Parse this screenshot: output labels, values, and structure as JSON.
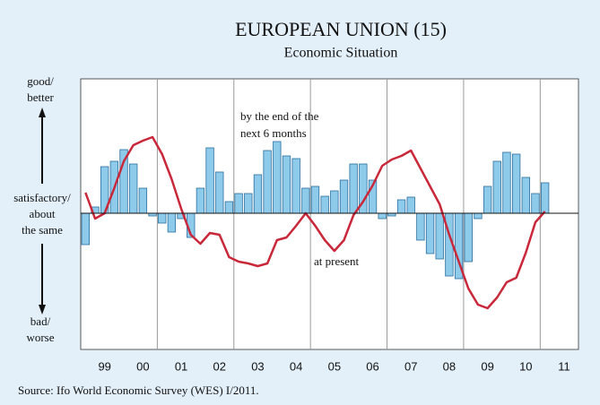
{
  "chart_data": {
    "type": "bar-line",
    "title": "EUROPEAN UNION (15)",
    "subtitle": "Economic Situation",
    "y_labels": {
      "top": [
        "good/",
        "better"
      ],
      "middle": [
        "satisfactory/",
        "about",
        "the same"
      ],
      "bottom": [
        "bad/",
        "worse"
      ]
    },
    "annotations": {
      "line": [
        "by the end of the",
        "next 6 months"
      ],
      "bars": [
        "at present"
      ]
    },
    "source": "Source: Ifo World Economic Survey (WES) I/2011.",
    "x": [
      1999,
      1999.25,
      1999.5,
      1999.75,
      2000,
      2000.25,
      2000.5,
      2000.75,
      2001,
      2001.25,
      2001.5,
      2001.75,
      2002,
      2002.25,
      2002.5,
      2002.75,
      2003,
      2003.25,
      2003.5,
      2003.75,
      2004,
      2004.25,
      2004.5,
      2004.75,
      2005,
      2005.25,
      2005.5,
      2005.75,
      2006,
      2006.25,
      2006.5,
      2006.75,
      2007,
      2007.25,
      2007.5,
      2007.75,
      2008,
      2008.25,
      2008.5,
      2008.75,
      2009,
      2009.25,
      2009.5,
      2009.75,
      2010,
      2010.25,
      2010.5,
      2010.75,
      2011
    ],
    "series": [
      {
        "type": "bar",
        "color": "#8ecbea",
        "values": [
          -17.5,
          3.5,
          26,
          29,
          35.5,
          27.5,
          14,
          -1.5,
          -5.5,
          -10.5,
          -3,
          -13.5,
          14,
          36.5,
          23,
          6.5,
          11,
          11,
          21.5,
          35,
          40,
          32,
          30.5,
          14,
          15,
          9.5,
          12.5,
          18.5,
          27.5,
          27.5,
          18.5,
          -3,
          -1.5,
          7.5,
          9,
          -15,
          -22.5,
          -25.5,
          -35,
          -36.5,
          -27,
          -3,
          15,
          29,
          34,
          33,
          20,
          11,
          17
        ]
      },
      {
        "type": "line",
        "color": "#c8283a",
        "values": [
          11.5,
          -3,
          0,
          14,
          29,
          38,
          40.5,
          42.5,
          33,
          19,
          2.5,
          -12,
          -17,
          -11,
          -12,
          -24.5,
          -27,
          -28,
          -29.5,
          -28,
          -15,
          -13.5,
          -7,
          0,
          -7,
          -15,
          -21,
          -15,
          -1,
          6.5,
          15.5,
          26.5,
          30,
          32,
          35,
          25,
          15,
          5,
          -12,
          -27,
          -42,
          -51,
          -53,
          -47,
          -38.5,
          -36,
          -22,
          -5,
          1
        ]
      }
    ],
    "xlim": [
      1998.875,
      2011.875
    ],
    "ylim": [
      -76,
      75
    ],
    "xticks": [
      {
        "value": 1999.5,
        "label": "99"
      },
      {
        "value": 2000.5,
        "label": "00"
      },
      {
        "value": 2001.5,
        "label": "01"
      },
      {
        "value": 2002.5,
        "label": "02"
      },
      {
        "value": 2003.5,
        "label": "03"
      },
      {
        "value": 2004.5,
        "label": "04"
      },
      {
        "value": 2005.5,
        "label": "05"
      },
      {
        "value": 2006.5,
        "label": "06"
      },
      {
        "value": 2007.5,
        "label": "07"
      },
      {
        "value": 2008.5,
        "label": "08"
      },
      {
        "value": 2009.5,
        "label": "09"
      },
      {
        "value": 2010.5,
        "label": "10"
      },
      {
        "value": 2011.5,
        "label": "11"
      }
    ],
    "xgrid": [
      2000.875,
      2002.875,
      2004.875,
      2006.875,
      2008.875,
      2010.875
    ]
  }
}
